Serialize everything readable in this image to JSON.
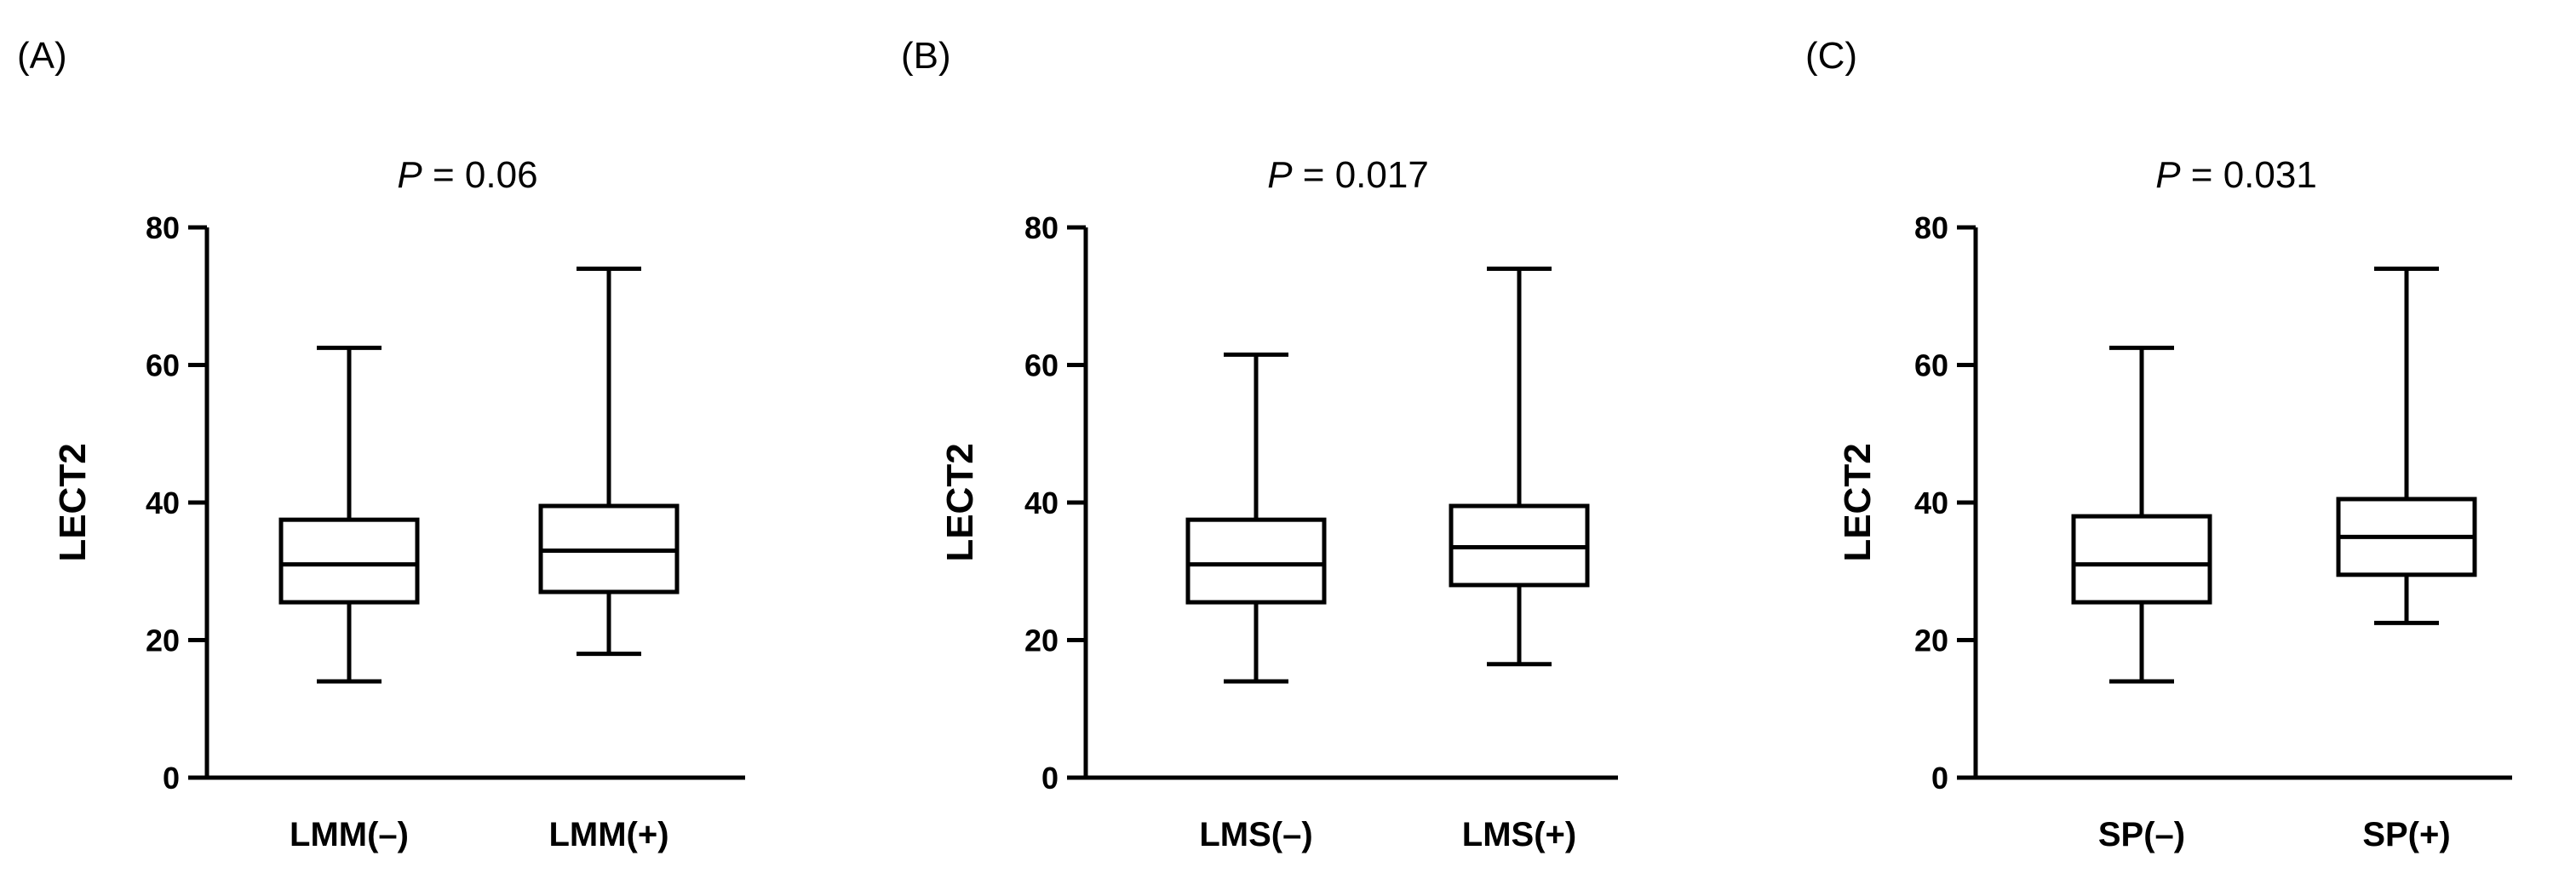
{
  "chart_data": [
    {
      "type": "box",
      "panel_label": "(A)",
      "p_label": "P",
      "p_value": " = 0.06",
      "ylabel": "LECT2",
      "ylim": [
        0,
        80
      ],
      "yticks": [
        0,
        20,
        40,
        60,
        80
      ],
      "categories": [
        "LMM(–)",
        "LMM(+)"
      ],
      "boxes": [
        {
          "min": 14,
          "q1": 25.5,
          "median": 31,
          "q3": 37.5,
          "max": 62.5
        },
        {
          "min": 18,
          "q1": 27,
          "median": 33,
          "q3": 39.5,
          "max": 74
        }
      ]
    },
    {
      "type": "box",
      "panel_label": "(B)",
      "p_label": "P",
      "p_value": " = 0.017",
      "ylabel": "LECT2",
      "ylim": [
        0,
        80
      ],
      "yticks": [
        0,
        20,
        40,
        60,
        80
      ],
      "categories": [
        "LMS(–)",
        "LMS(+)"
      ],
      "boxes": [
        {
          "min": 14,
          "q1": 25.5,
          "median": 31,
          "q3": 37.5,
          "max": 61.5
        },
        {
          "min": 16.5,
          "q1": 28,
          "median": 33.5,
          "q3": 39.5,
          "max": 74
        }
      ]
    },
    {
      "type": "box",
      "panel_label": "(C)",
      "p_label": "P",
      "p_value": " = 0.031",
      "ylabel": "LECT2",
      "ylim": [
        0,
        80
      ],
      "yticks": [
        0,
        20,
        40,
        60,
        80
      ],
      "categories": [
        "SP(–)",
        "SP(+)"
      ],
      "boxes": [
        {
          "min": 14,
          "q1": 25.5,
          "median": 31,
          "q3": 38,
          "max": 62.5
        },
        {
          "min": 22.5,
          "q1": 29.5,
          "median": 35,
          "q3": 40.5,
          "max": 74
        }
      ]
    }
  ]
}
